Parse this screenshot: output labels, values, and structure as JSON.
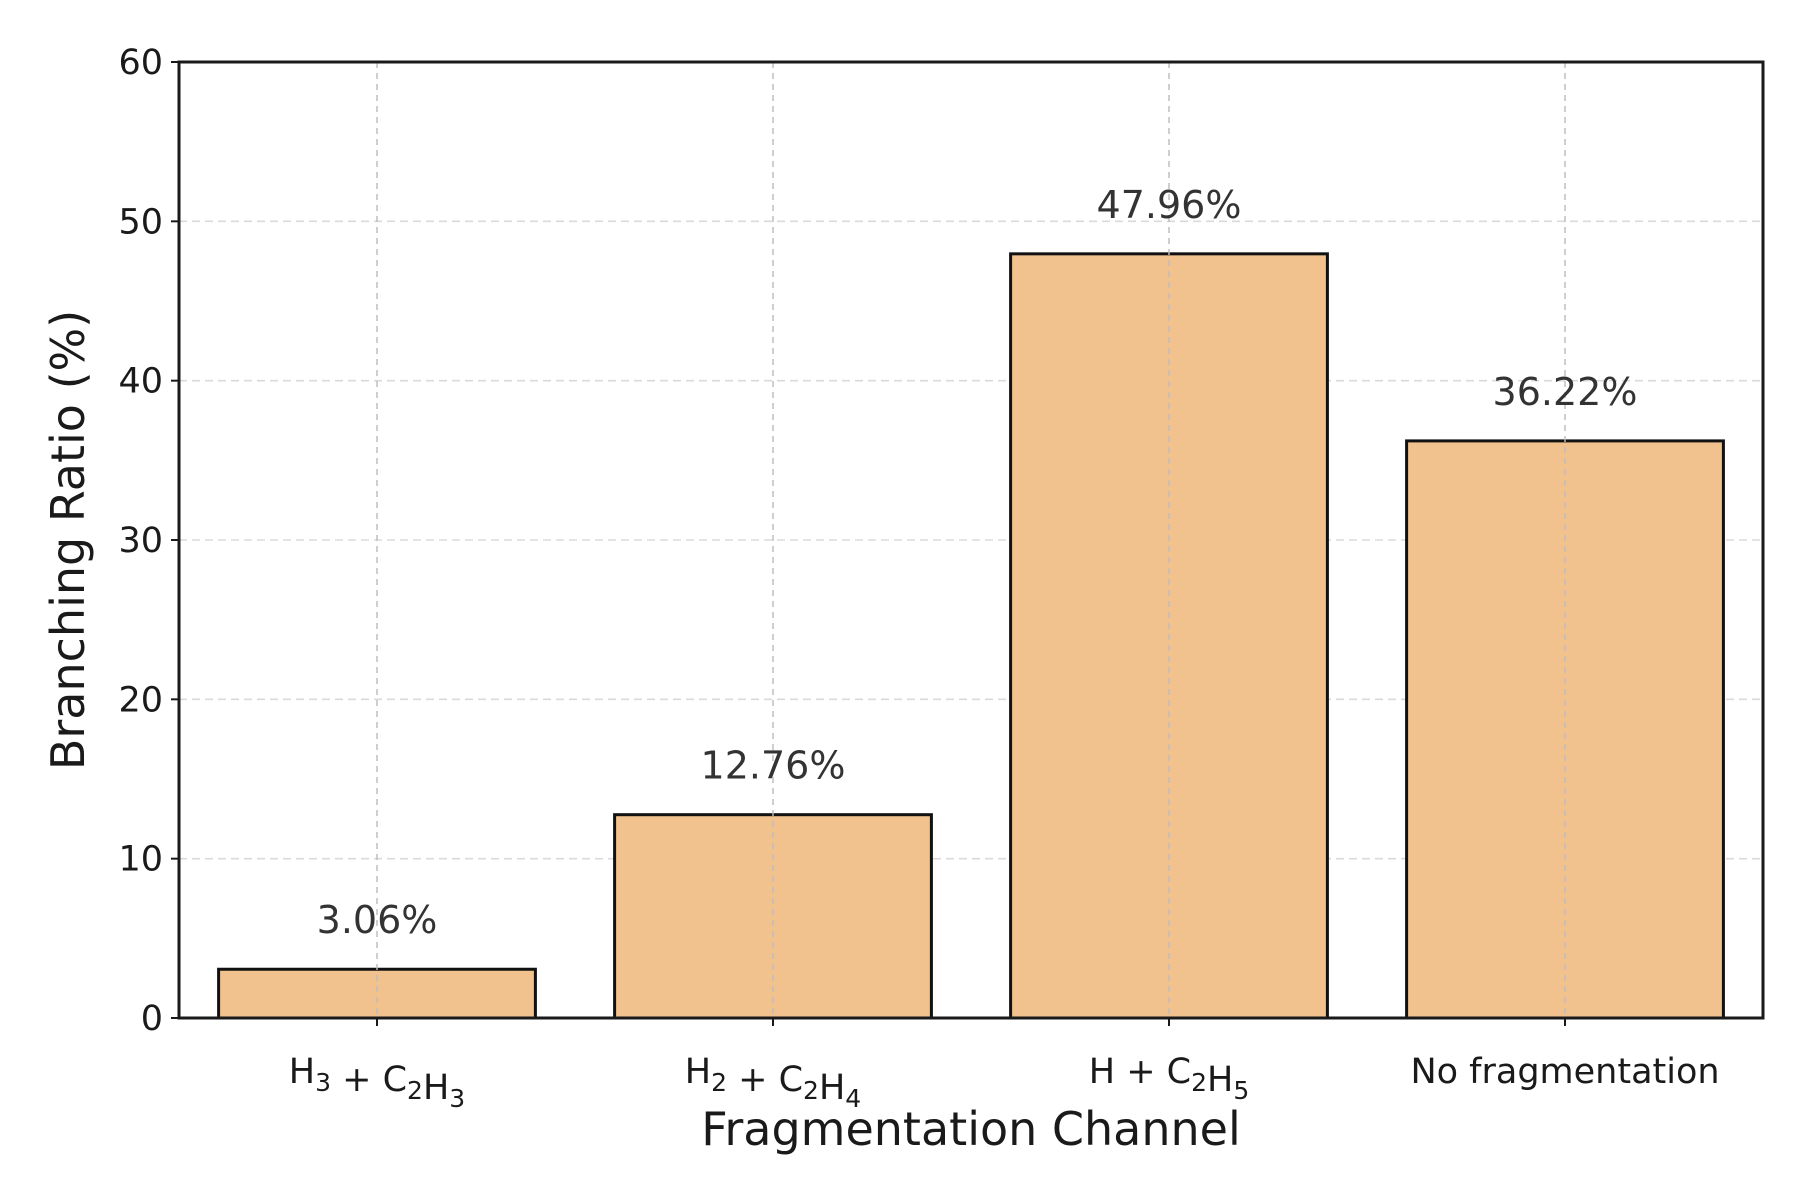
{
  "chart_data": {
    "type": "bar",
    "categories": [
      "H3 + C2H3",
      "H2 + C2H4",
      "H + C2H5",
      "No fragmentation"
    ],
    "category_labels": [
      [
        {
          "t": "H"
        },
        {
          "t": "3",
          "sub": true
        },
        {
          "t": " + C"
        },
        {
          "t": "2",
          "sub": true
        },
        {
          "t": "H"
        },
        {
          "t": "3",
          "sub": true
        }
      ],
      [
        {
          "t": "H"
        },
        {
          "t": "2",
          "sub": true
        },
        {
          "t": " + C"
        },
        {
          "t": "2",
          "sub": true
        },
        {
          "t": "H"
        },
        {
          "t": "4",
          "sub": true
        }
      ],
      [
        {
          "t": "H + C"
        },
        {
          "t": "2",
          "sub": true
        },
        {
          "t": "H"
        },
        {
          "t": "5",
          "sub": true
        }
      ],
      [
        {
          "t": "No fragmentation"
        }
      ]
    ],
    "values": [
      3.06,
      12.76,
      47.96,
      36.22
    ],
    "data_labels": [
      "3.06%",
      "12.76%",
      "47.96%",
      "36.22%"
    ],
    "xlabel": "Fragmentation Channel",
    "ylabel": "Branching Ratio (%)",
    "ylim": [
      0,
      60
    ],
    "yticks": [
      0,
      10,
      20,
      30,
      40,
      50,
      60
    ],
    "grid": true,
    "colors": {
      "bar_fill": "#f2c28e",
      "bar_edge": "#111111",
      "grid": "#bdbdbd",
      "axis": "#1a1a1a"
    }
  }
}
